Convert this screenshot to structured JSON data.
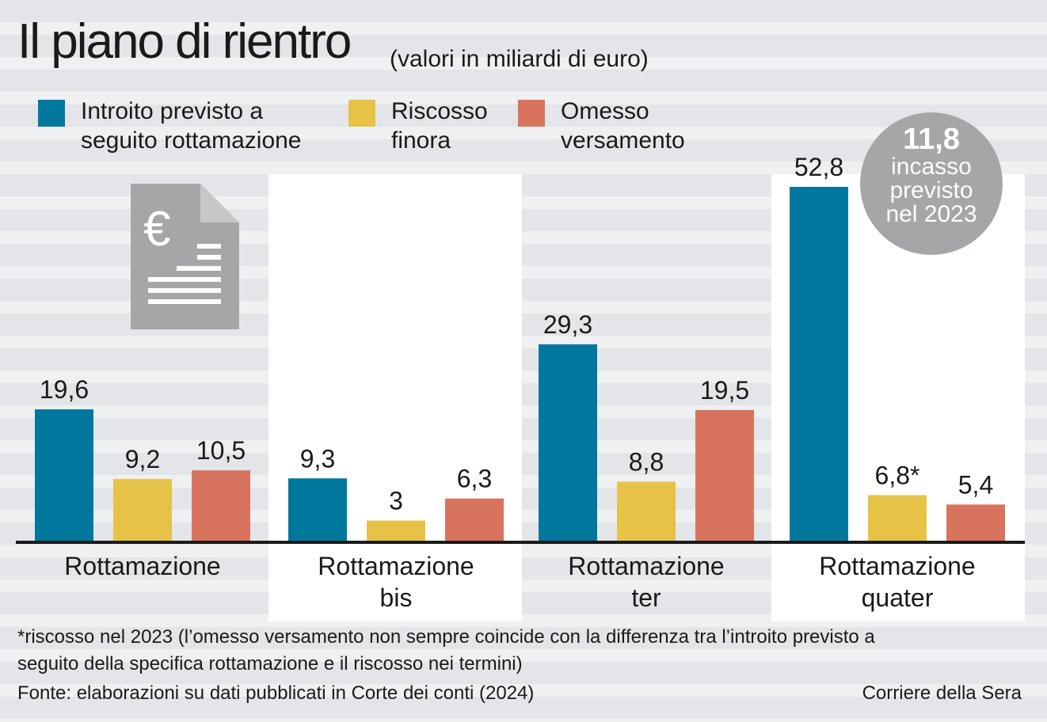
{
  "title": "Il piano di rientro",
  "subtitle": "(valori in miliardi di euro)",
  "legend": [
    {
      "label": "Introito previsto a seguito rottamazione",
      "color": "#00789e"
    },
    {
      "label": "Riscosso finora",
      "color": "#e6c346"
    },
    {
      "label": "Omesso versamento",
      "color": "#d8745d"
    }
  ],
  "badge": {
    "value": "11,8",
    "text": "incasso previsto nel 2023"
  },
  "icon": "euro-document-icon",
  "chart_data": {
    "type": "bar",
    "categories": [
      "Rottamazione",
      "Rottamazione bis",
      "Rottamazione ter",
      "Rottamazione quater"
    ],
    "series": [
      {
        "name": "Introito previsto a seguito rottamazione",
        "values": [
          19.6,
          9.3,
          29.3,
          52.8
        ],
        "labels": [
          "19,6",
          "9,3",
          "29,3",
          "52,8"
        ],
        "color": "#00789e"
      },
      {
        "name": "Riscosso finora",
        "values": [
          9.2,
          3,
          8.8,
          6.8
        ],
        "labels": [
          "9,2",
          "3",
          "8,8",
          "6,8*"
        ],
        "color": "#e6c346"
      },
      {
        "name": "Omesso versamento",
        "values": [
          10.5,
          6.3,
          19.5,
          5.4
        ],
        "labels": [
          "10,5",
          "6,3",
          "19,5",
          "5,4"
        ],
        "color": "#d8745d"
      }
    ],
    "ylim": [
      0,
      52.8
    ],
    "grid": false,
    "legend_position": "top-left"
  },
  "footnote": "*riscosso nel 2023 (l’omesso versamento non sempre coincide con la differenza tra l’introito previsto a seguito della specifica rottamazione e il riscosso nei termini)",
  "source": "Fonte: elaborazioni su dati pubblicati in Corte dei conti (2024)",
  "credit": "Corriere della Sera"
}
